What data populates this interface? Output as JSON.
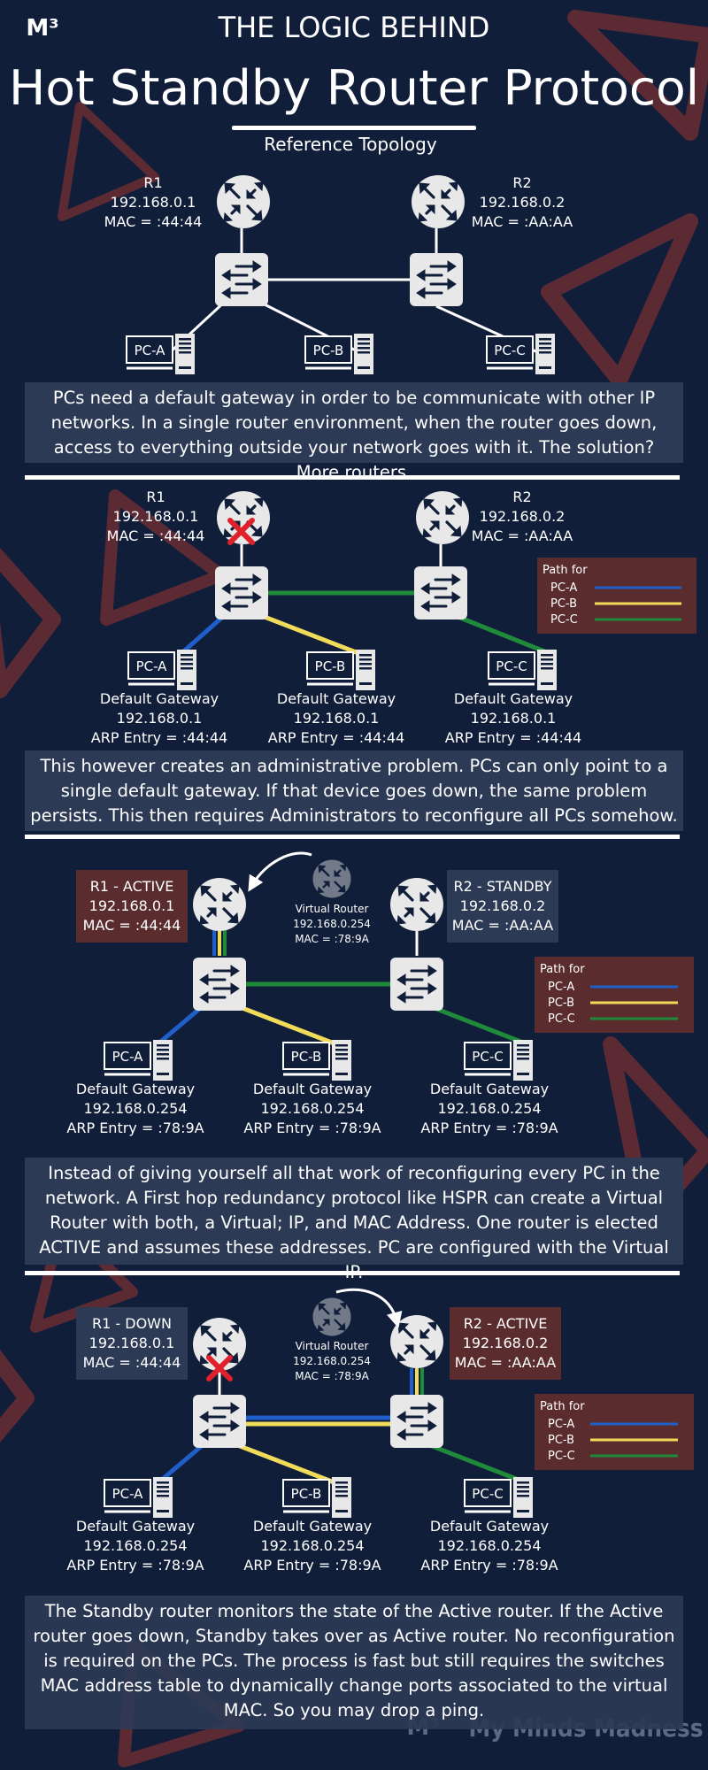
{
  "header": {
    "logo": "M³",
    "kicker": "THE LOGIC BEHIND",
    "title": "Hot Standby Router Protocol",
    "subtitle": "Reference Topology"
  },
  "colors": {
    "background": "#111e3a",
    "panel": "#2c3a55",
    "label_box": "#5a2c2e",
    "pc_a": "#1f5fc9",
    "pc_b": "#f1dc5a",
    "pc_c": "#1e8a3a",
    "fail": "#e0202a",
    "decor": "#7a3636"
  },
  "pcs": {
    "a": "PC-A",
    "b": "PC-B",
    "c": "PC-C"
  },
  "legend": {
    "title": "Path for",
    "a": "PC-A",
    "b": "PC-B",
    "c": "PC-C"
  },
  "s1": {
    "r1": {
      "name": "R1",
      "ip": "192.168.0.1",
      "mac": "MAC = :44:44"
    },
    "r2": {
      "name": "R2",
      "ip": "192.168.0.2",
      "mac": "MAC = :AA:AA"
    },
    "text": "PCs need a default gateway in order to be communicate with other IP networks. In a single router environment, when the router goes down, access to everything outside your network goes with it. The solution? More routers."
  },
  "s2": {
    "r1": {
      "name": "R1",
      "ip": "192.168.0.1",
      "mac": "MAC = :44:44"
    },
    "r2": {
      "name": "R2",
      "ip": "192.168.0.2",
      "mac": "MAC = :AA:AA"
    },
    "gw": {
      "label": "Default Gateway",
      "ip": "192.168.0.1",
      "arp": "ARP Entry = :44:44"
    },
    "text": "This however creates an administrative problem. PCs can only point to a single default gateway. If that device goes down, the same problem persists. This then requires Administrators to reconfigure all PCs somehow."
  },
  "s3": {
    "r1": {
      "name": "R1 - ACTIVE",
      "ip": "192.168.0.1",
      "mac": "MAC = :44:44"
    },
    "r2": {
      "name": "R2 - STANDBY",
      "ip": "192.168.0.2",
      "mac": "MAC = :AA:AA"
    },
    "vr": {
      "name": "Virtual Router",
      "ip": "192.168.0.254",
      "mac": "MAC = :78:9A"
    },
    "gw": {
      "label": "Default Gateway",
      "ip": "192.168.0.254",
      "arp": "ARP Entry = :78:9A"
    },
    "text": "Instead of giving yourself all that work of reconfiguring every PC in the network. A First hop redundancy protocol like HSPR can create a Virtual Router with both, a Virtual; IP, and MAC Address. One router is elected ACTIVE and assumes these addresses. PC are configured with the Virtual IP."
  },
  "s4": {
    "r1": {
      "name": "R1 - DOWN",
      "ip": "192.168.0.1",
      "mac": "MAC = :44:44"
    },
    "r2": {
      "name": "R2 - ACTIVE",
      "ip": "192.168.0.2",
      "mac": "MAC = :AA:AA"
    },
    "vr": {
      "name": "Virtual Router",
      "ip": "192.168.0.254",
      "mac": "MAC = :78:9A"
    },
    "gw": {
      "label": "Default Gateway",
      "ip": "192.168.0.254",
      "arp": "ARP Entry = :78:9A"
    },
    "text": "The Standby router monitors the state of the Active router. If the Active router goes down, Standby takes over as Active router. No reconfiguration is required on the PCs. The process is fast but still requires the switches MAC address table to dynamically change ports associated to the virtual MAC. So you may drop a ping."
  },
  "footer": {
    "logo": "M³",
    "brand": "My Minds Madness"
  }
}
